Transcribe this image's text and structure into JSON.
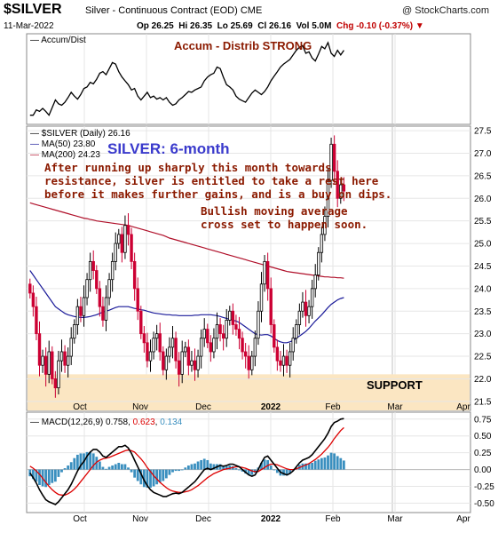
{
  "header": {
    "symbol": "$SILVER",
    "name": "Silver - Continuous Contract (EOD)",
    "exchange": "CME",
    "watermark": "@ StockCharts.com",
    "date": "11-Mar-2022",
    "open": "Op 26.25",
    "high": "Hi 26.35",
    "low": "Lo 25.69",
    "close": "Cl 26.16",
    "volume": "Vol 5.0M",
    "change": "Chg -0.10 (-0.37%)"
  },
  "accum_panel": {
    "legend": "Accum/Dist",
    "title": "Accum - Distrib STRONG"
  },
  "price_panel": {
    "legend_main": "$SILVER (Daily) 26.16",
    "legend_ma50": "MA(50) 23.80",
    "legend_ma200": "MA(200) 24.23",
    "title": "SILVER: 6-month",
    "comment_1": "After running up sharply this month towards\nresistance, silver is entitled to take a rest here\nbefore it makes further gains, and is a buy on dips.",
    "comment_2": "Bullish moving average\ncross set to happen soon.",
    "support_label": "SUPPORT"
  },
  "macd_panel": {
    "legend_label": "MACD(12,26,9)",
    "macd_value": "0.758",
    "signal_value": "0.623",
    "hist_value": "0.134"
  },
  "colors": {
    "up": "#000000",
    "down": "#cc0033",
    "ma50": "#1a1a99",
    "ma200": "#b0102a",
    "support_band": "#fbe6c2",
    "macd_signal": "#dd0000",
    "macd_hist": "#3a8fbf",
    "annotation": "#8b1a00",
    "title_blue": "#3a3acc"
  },
  "chart_data": [
    {
      "type": "line",
      "name": "Accum/Dist",
      "x_labels": [
        "Oct",
        "Nov",
        "Dec",
        "2022",
        "Feb",
        "Mar",
        "Apr"
      ],
      "values": [
        0.05,
        0.05,
        0.12,
        0.1,
        0.14,
        0.1,
        0.05,
        0.15,
        0.25,
        0.2,
        0.18,
        0.22,
        0.28,
        0.35,
        0.3,
        0.26,
        0.32,
        0.4,
        0.42,
        0.48,
        0.46,
        0.52,
        0.6,
        0.62,
        0.58,
        0.66,
        0.74,
        0.72,
        0.62,
        0.55,
        0.5,
        0.45,
        0.38,
        0.4,
        0.3,
        0.25,
        0.3,
        0.35,
        0.28,
        0.3,
        0.26,
        0.28,
        0.25,
        0.28,
        0.22,
        0.18,
        0.2,
        0.25,
        0.28,
        0.32,
        0.36,
        0.35,
        0.38,
        0.4,
        0.42,
        0.5,
        0.55,
        0.58,
        0.6,
        0.68,
        0.66,
        0.55,
        0.45,
        0.42,
        0.38,
        0.3,
        0.26,
        0.24,
        0.22,
        0.28,
        0.34,
        0.38,
        0.35,
        0.32,
        0.36,
        0.42,
        0.5,
        0.56,
        0.62,
        0.68,
        0.72,
        0.75,
        0.78,
        0.84,
        0.9,
        0.94,
        0.96,
        0.86,
        0.88,
        0.8,
        0.76,
        0.85,
        0.95,
        0.92,
        1.0,
        0.86,
        0.82,
        0.9,
        0.84,
        0.9
      ]
    },
    {
      "type": "candlestick",
      "name": "$SILVER (Daily)",
      "x_labels": [
        "Oct",
        "Nov",
        "Dec",
        "2022",
        "Feb",
        "Mar",
        "Apr"
      ],
      "ylim": [
        21.3,
        27.6
      ],
      "y_ticks": [
        21.5,
        22.0,
        22.5,
        23.0,
        23.5,
        24.0,
        24.5,
        25.0,
        25.5,
        26.0,
        26.5,
        27.0,
        27.5
      ],
      "support_zone": [
        21.3,
        22.1
      ],
      "closes": [
        23.9,
        23.6,
        23.0,
        22.3,
        22.5,
        22.1,
        22.6,
        22.0,
        21.8,
        22.4,
        22.6,
        22.3,
        22.5,
        22.9,
        23.2,
        23.6,
        23.4,
        23.8,
        24.2,
        24.6,
        24.4,
        24.0,
        23.6,
        23.3,
        23.8,
        24.2,
        24.6,
        25.0,
        25.2,
        24.8,
        25.4,
        25.2,
        24.6,
        24.0,
        23.5,
        23.0,
        22.8,
        22.4,
        22.6,
        22.9,
        23.0,
        22.6,
        22.2,
        22.5,
        22.7,
        22.9,
        22.4,
        22.1,
        22.6,
        22.7,
        22.3,
        22.4,
        22.2,
        22.5,
        22.9,
        23.1,
        22.8,
        22.6,
        22.9,
        23.2,
        23.0,
        22.9,
        23.3,
        23.5,
        23.2,
        23.1,
        22.9,
        22.6,
        22.5,
        22.2,
        22.5,
        22.9,
        23.5,
        24.1,
        24.6,
        24.0,
        23.2,
        22.7,
        22.4,
        22.3,
        22.5,
        22.3,
        22.6,
        22.9,
        23.2,
        23.5,
        23.7,
        23.4,
        23.6,
        24.0,
        24.3,
        24.8,
        25.2,
        25.6,
        26.4,
        27.2,
        26.6,
        26.0,
        26.3,
        26.16
      ],
      "ma50": [
        24.4,
        24.3,
        24.2,
        24.1,
        24.0,
        23.9,
        23.8,
        23.7,
        23.6,
        23.55,
        23.5,
        23.45,
        23.42,
        23.4,
        23.38,
        23.37,
        23.36,
        23.36,
        23.37,
        23.38,
        23.4,
        23.42,
        23.45,
        23.48,
        23.5,
        23.52,
        23.55,
        23.58,
        23.6,
        23.6,
        23.6,
        23.6,
        23.58,
        23.56,
        23.55,
        23.53,
        23.52,
        23.5,
        23.48,
        23.46,
        23.45,
        23.44,
        23.43,
        23.42,
        23.42,
        23.41,
        23.41,
        23.4,
        23.4,
        23.4,
        23.4,
        23.4,
        23.41,
        23.41,
        23.42,
        23.42,
        23.42,
        23.42,
        23.41,
        23.4,
        23.38,
        23.36,
        23.34,
        23.32,
        23.3,
        23.28,
        23.25,
        23.2,
        23.15,
        23.1,
        23.05,
        23.0,
        22.98,
        22.97,
        22.98,
        22.98,
        22.95,
        22.9,
        22.85,
        22.82,
        22.8,
        22.8,
        22.82,
        22.85,
        22.9,
        22.95,
        23.0,
        23.05,
        23.12,
        23.2,
        23.28,
        23.35,
        23.42,
        23.5,
        23.58,
        23.65,
        23.7,
        23.75,
        23.78,
        23.8
      ],
      "ma200": [
        25.9,
        25.88,
        25.86,
        25.84,
        25.82,
        25.8,
        25.78,
        25.76,
        25.74,
        25.72,
        25.7,
        25.68,
        25.66,
        25.64,
        25.62,
        25.6,
        25.58,
        25.56,
        25.55,
        25.53,
        25.52,
        25.5,
        25.49,
        25.48,
        25.47,
        25.46,
        25.45,
        25.44,
        25.43,
        25.42,
        25.41,
        25.4,
        25.38,
        25.36,
        25.34,
        25.32,
        25.3,
        25.28,
        25.26,
        25.24,
        25.22,
        25.2,
        25.18,
        25.15,
        25.12,
        25.1,
        25.08,
        25.06,
        25.04,
        25.02,
        25.0,
        24.98,
        24.96,
        24.94,
        24.92,
        24.9,
        24.88,
        24.86,
        24.84,
        24.82,
        24.8,
        24.78,
        24.76,
        24.74,
        24.72,
        24.7,
        24.68,
        24.66,
        24.64,
        24.62,
        24.6,
        24.58,
        24.56,
        24.54,
        24.52,
        24.5,
        24.48,
        24.46,
        24.44,
        24.42,
        24.4,
        24.38,
        24.37,
        24.36,
        24.35,
        24.34,
        24.33,
        24.32,
        24.31,
        24.3,
        24.29,
        24.28,
        24.27,
        24.26,
        24.26,
        24.25,
        24.25,
        24.24,
        24.24,
        24.23
      ]
    },
    {
      "type": "line",
      "name": "MACD(12,26,9)",
      "x_labels": [
        "Oct",
        "Nov",
        "Dec",
        "2022",
        "Feb",
        "Mar",
        "Apr"
      ],
      "ylim": [
        -0.6,
        0.8
      ],
      "y_ticks": [
        -0.5,
        -0.25,
        0.0,
        0.25,
        0.5,
        0.75
      ],
      "series": [
        {
          "name": "MACD",
          "values": [
            -0.05,
            -0.12,
            -0.2,
            -0.3,
            -0.38,
            -0.45,
            -0.48,
            -0.5,
            -0.52,
            -0.48,
            -0.42,
            -0.36,
            -0.3,
            -0.22,
            -0.12,
            -0.02,
            0.06,
            0.12,
            0.2,
            0.26,
            0.3,
            0.3,
            0.26,
            0.2,
            0.18,
            0.22,
            0.26,
            0.3,
            0.34,
            0.34,
            0.36,
            0.32,
            0.24,
            0.14,
            0.04,
            -0.06,
            -0.16,
            -0.24,
            -0.3,
            -0.34,
            -0.36,
            -0.38,
            -0.4,
            -0.4,
            -0.38,
            -0.36,
            -0.35,
            -0.36,
            -0.34,
            -0.3,
            -0.26,
            -0.22,
            -0.18,
            -0.12,
            -0.06,
            0.0,
            0.02,
            0.0,
            0.02,
            0.04,
            0.06,
            0.05,
            0.06,
            0.08,
            0.08,
            0.06,
            0.04,
            0.0,
            -0.04,
            -0.08,
            -0.1,
            -0.08,
            0.0,
            0.1,
            0.18,
            0.2,
            0.14,
            0.08,
            0.02,
            -0.04,
            -0.06,
            -0.08,
            -0.06,
            -0.02,
            0.04,
            0.1,
            0.14,
            0.16,
            0.18,
            0.22,
            0.28,
            0.34,
            0.4,
            0.46,
            0.54,
            0.64,
            0.7,
            0.72,
            0.75,
            0.758
          ]
        },
        {
          "name": "Signal",
          "values": [
            0.05,
            0.02,
            -0.02,
            -0.07,
            -0.13,
            -0.19,
            -0.25,
            -0.3,
            -0.34,
            -0.37,
            -0.38,
            -0.38,
            -0.36,
            -0.33,
            -0.29,
            -0.24,
            -0.18,
            -0.12,
            -0.06,
            0.0,
            0.06,
            0.11,
            0.14,
            0.16,
            0.17,
            0.18,
            0.2,
            0.22,
            0.24,
            0.26,
            0.28,
            0.29,
            0.28,
            0.26,
            0.21,
            0.16,
            0.1,
            0.03,
            -0.03,
            -0.09,
            -0.14,
            -0.19,
            -0.23,
            -0.27,
            -0.3,
            -0.32,
            -0.33,
            -0.34,
            -0.34,
            -0.33,
            -0.32,
            -0.3,
            -0.27,
            -0.24,
            -0.2,
            -0.16,
            -0.12,
            -0.09,
            -0.06,
            -0.04,
            -0.02,
            0.0,
            0.01,
            0.02,
            0.03,
            0.04,
            0.04,
            0.03,
            0.02,
            0.0,
            -0.02,
            -0.03,
            -0.03,
            0.0,
            0.03,
            0.06,
            0.08,
            0.08,
            0.07,
            0.05,
            0.03,
            0.01,
            0.0,
            0.0,
            0.01,
            0.03,
            0.05,
            0.07,
            0.09,
            0.12,
            0.15,
            0.19,
            0.23,
            0.28,
            0.33,
            0.39,
            0.46,
            0.52,
            0.58,
            0.623
          ]
        }
      ],
      "histogram": [
        -0.1,
        -0.14,
        -0.18,
        -0.23,
        -0.25,
        -0.26,
        -0.23,
        -0.2,
        -0.18,
        -0.11,
        -0.04,
        0.02,
        0.06,
        0.11,
        0.17,
        0.22,
        0.24,
        0.24,
        0.26,
        0.26,
        0.24,
        0.19,
        0.12,
        0.04,
        0.01,
        0.04,
        0.06,
        0.08,
        0.1,
        0.08,
        0.08,
        0.03,
        -0.04,
        -0.12,
        -0.17,
        -0.22,
        -0.26,
        -0.27,
        -0.27,
        -0.25,
        -0.22,
        -0.19,
        -0.17,
        -0.13,
        -0.08,
        -0.04,
        -0.02,
        -0.02,
        0.0,
        0.03,
        0.06,
        0.08,
        0.09,
        0.12,
        0.14,
        0.16,
        0.14,
        0.09,
        0.08,
        0.08,
        0.08,
        0.05,
        0.05,
        0.06,
        0.05,
        0.02,
        0.0,
        -0.03,
        -0.06,
        -0.08,
        -0.08,
        -0.05,
        0.03,
        0.1,
        0.15,
        0.14,
        0.06,
        0.0,
        -0.05,
        -0.09,
        -0.09,
        -0.09,
        -0.06,
        -0.02,
        0.03,
        0.07,
        0.09,
        0.09,
        0.09,
        0.1,
        0.13,
        0.15,
        0.17,
        0.18,
        0.21,
        0.25,
        0.24,
        0.2,
        0.17,
        0.134
      ]
    }
  ]
}
